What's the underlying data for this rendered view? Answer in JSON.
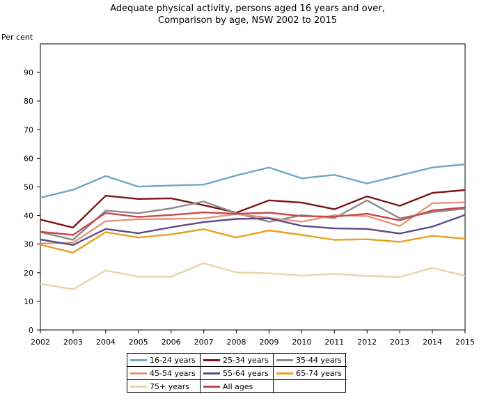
{
  "chart_data": {
    "type": "line",
    "title_line1": "Adequate physical activity, persons aged 16 years and over,",
    "title_line2": "Comparison by age, NSW 2002 to 2015",
    "ylabel": "Per cent",
    "xlabel": "",
    "ylim": [
      0,
      100
    ],
    "yticks": [
      0,
      10,
      20,
      30,
      40,
      50,
      60,
      70,
      80,
      90
    ],
    "x": [
      "2002",
      "2003",
      "2004",
      "2005",
      "2006",
      "2007",
      "2008",
      "2009",
      "2010",
      "2011",
      "2012",
      "2013",
      "2014",
      "2015"
    ],
    "grid": false,
    "legend_placement": "bottom",
    "series": [
      {
        "name": "16-24 years",
        "color": "#6fa8c4",
        "values": [
          46.2,
          49.0,
          53.8,
          50.1,
          50.5,
          50.8,
          54.0,
          56.8,
          53.0,
          54.2,
          51.2,
          54.0,
          56.8,
          57.9
        ]
      },
      {
        "name": "25-34 years",
        "color": "#7a1515",
        "values": [
          38.6,
          35.8,
          46.9,
          45.8,
          46.0,
          43.6,
          41.0,
          45.3,
          44.5,
          42.2,
          46.7,
          43.4,
          47.9,
          48.9
        ]
      },
      {
        "name": "35-44 years",
        "color": "#8a8a8a",
        "values": [
          34.2,
          31.5,
          41.7,
          40.8,
          42.5,
          44.9,
          40.8,
          37.8,
          40.1,
          39.1,
          45.3,
          39.0,
          41.2,
          42.4
        ]
      },
      {
        "name": "45-54 years",
        "color": "#e6957a",
        "values": [
          30.2,
          30.5,
          38.0,
          38.7,
          38.8,
          39.0,
          40.5,
          39.2,
          37.8,
          40.1,
          39.8,
          36.3,
          44.3,
          44.6
        ]
      },
      {
        "name": "55-64 years",
        "color": "#5a4a8a",
        "values": [
          31.6,
          29.7,
          35.3,
          33.8,
          35.9,
          37.7,
          38.8,
          39.0,
          36.4,
          35.5,
          35.3,
          33.7,
          36.1,
          40.2
        ]
      },
      {
        "name": "65-74 years",
        "color": "#e8a020",
        "values": [
          29.8,
          27.0,
          34.2,
          32.3,
          33.4,
          35.2,
          32.3,
          34.8,
          33.2,
          31.5,
          31.7,
          30.8,
          32.9,
          31.9
        ]
      },
      {
        "name": "75+ years",
        "color": "#e8d4a8",
        "values": [
          16.1,
          14.2,
          20.8,
          18.6,
          18.6,
          23.3,
          20.1,
          19.8,
          19.0,
          19.6,
          18.9,
          18.5,
          21.7,
          18.9
        ]
      },
      {
        "name": "All ages",
        "color": "#c8474a",
        "values": [
          34.3,
          33.2,
          40.9,
          39.5,
          40.2,
          41.1,
          40.6,
          41.0,
          39.8,
          39.6,
          40.6,
          38.3,
          41.8,
          42.8
        ]
      }
    ]
  }
}
